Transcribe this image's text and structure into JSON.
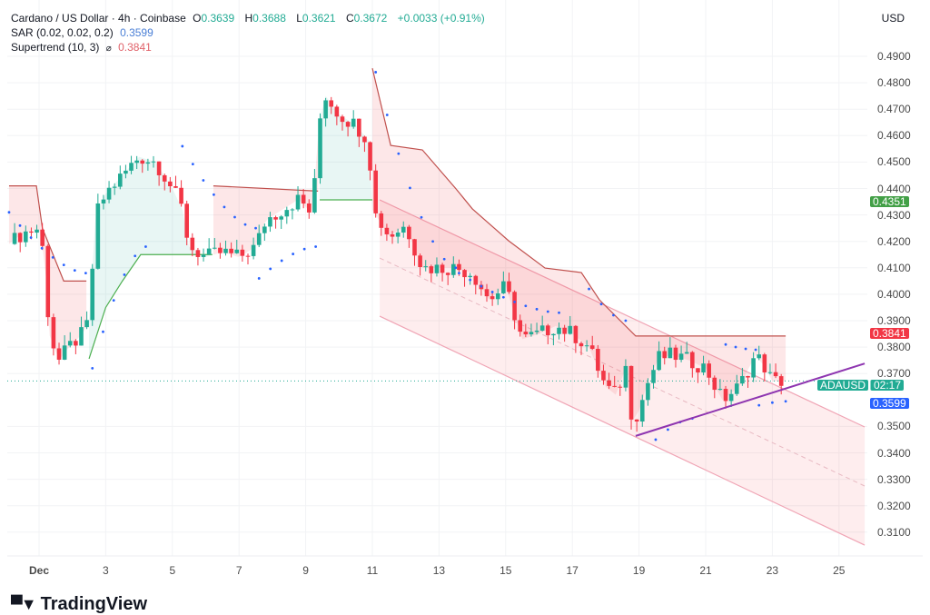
{
  "header": {
    "symbol": "Cardano / US Dollar · 4h · Coinbase",
    "o_label": "O",
    "o": "0.3639",
    "h_label": "H",
    "h": "0.3688",
    "l_label": "L",
    "l": "0.3621",
    "c_label": "C",
    "c": "0.3672",
    "change": "+0.0033 (+0.91%)",
    "sar_label": "SAR (0.02, 0.02, 0.2)",
    "sar_value": "0.3599",
    "st_label": "Supertrend (10, 3)",
    "st_symbol": "⌀",
    "st_value": "0.3841"
  },
  "currency": "USD",
  "price_tags": {
    "high_marker": "0.4351",
    "supertrend": "0.3841",
    "symbol": "ADAUSD",
    "countdown": "02:17",
    "sar": "0.3599"
  },
  "brand": "TradingView",
  "colors": {
    "up": "#22ab94",
    "down": "#f23645",
    "green_tag": "#43a047",
    "red_tag": "#f23645",
    "blue_tag": "#2962ff",
    "purple": "#8e35b0"
  },
  "chart_data": {
    "type": "candlestick",
    "title": "Cardano / US Dollar · 4h · Coinbase",
    "x_ticks": [
      {
        "d": 1,
        "label": "Dec"
      },
      {
        "d": 3,
        "label": "3"
      },
      {
        "d": 5,
        "label": "5"
      },
      {
        "d": 7,
        "label": "7"
      },
      {
        "d": 9,
        "label": "9"
      },
      {
        "d": 11,
        "label": "11"
      },
      {
        "d": 13,
        "label": "13"
      },
      {
        "d": 15,
        "label": "15"
      },
      {
        "d": 17,
        "label": "17"
      },
      {
        "d": 19,
        "label": "19"
      },
      {
        "d": 21,
        "label": "21"
      },
      {
        "d": 23,
        "label": "23"
      },
      {
        "d": 25,
        "label": "25"
      }
    ],
    "y_ticks": [
      "0.4900",
      "0.4800",
      "0.4700",
      "0.4600",
      "0.4500",
      "0.4400",
      "0.4300",
      "0.4200",
      "0.4100",
      "0.4000",
      "0.3900",
      "0.3800",
      "0.3700",
      "0.3500",
      "0.3400",
      "0.3300",
      "0.3200",
      "0.3100"
    ],
    "ylim": [
      0.3,
      0.5
    ],
    "price_path": [
      [
        0.1,
        0.419
      ],
      [
        0.5,
        0.423
      ],
      [
        1.0,
        0.425
      ],
      [
        1.2,
        0.41
      ],
      [
        1.3,
        0.385
      ],
      [
        1.6,
        0.375
      ],
      [
        1.9,
        0.38
      ],
      [
        2.3,
        0.385
      ],
      [
        2.5,
        0.39
      ],
      [
        2.7,
        0.43
      ],
      [
        3.0,
        0.438
      ],
      [
        3.5,
        0.445
      ],
      [
        4.0,
        0.452
      ],
      [
        4.5,
        0.45
      ],
      [
        5.0,
        0.44
      ],
      [
        5.3,
        0.432
      ],
      [
        5.5,
        0.418
      ],
      [
        6.0,
        0.414
      ],
      [
        6.5,
        0.416
      ],
      [
        7.0,
        0.414
      ],
      [
        7.5,
        0.418
      ],
      [
        7.8,
        0.428
      ],
      [
        8.3,
        0.432
      ],
      [
        8.8,
        0.436
      ],
      [
        9.2,
        0.43
      ],
      [
        9.4,
        0.465
      ],
      [
        9.6,
        0.475
      ],
      [
        10.0,
        0.468
      ],
      [
        10.5,
        0.464
      ],
      [
        10.9,
        0.458
      ],
      [
        11.0,
        0.432
      ],
      [
        11.5,
        0.422
      ],
      [
        12.0,
        0.426
      ],
      [
        12.5,
        0.41
      ],
      [
        13.0,
        0.41
      ],
      [
        13.5,
        0.41
      ],
      [
        14.0,
        0.408
      ],
      [
        14.5,
        0.398
      ],
      [
        15.0,
        0.403
      ],
      [
        15.5,
        0.383
      ],
      [
        16.0,
        0.385
      ],
      [
        16.5,
        0.388
      ],
      [
        17.0,
        0.385
      ],
      [
        17.5,
        0.38
      ],
      [
        18.0,
        0.365
      ],
      [
        18.3,
        0.362
      ],
      [
        18.6,
        0.372
      ],
      [
        18.8,
        0.352
      ],
      [
        19.0,
        0.356
      ],
      [
        19.3,
        0.368
      ],
      [
        19.6,
        0.376
      ],
      [
        20.0,
        0.377
      ],
      [
        20.5,
        0.375
      ],
      [
        21.0,
        0.372
      ],
      [
        21.5,
        0.36
      ],
      [
        22.0,
        0.365
      ],
      [
        22.5,
        0.377
      ],
      [
        22.8,
        0.372
      ],
      [
        23.0,
        0.367
      ],
      [
        23.35,
        0.3672
      ]
    ],
    "supertrend": [
      {
        "dir": "down",
        "points": [
          [
            0.1,
            0.441
          ],
          [
            0.92,
            0.441
          ],
          [
            1.1,
            0.425
          ],
          [
            1.74,
            0.405
          ],
          [
            2.42,
            0.405
          ]
        ]
      },
      {
        "dir": "up",
        "points": [
          [
            2.5,
            0.3756
          ],
          [
            3.0,
            0.395
          ],
          [
            3.5,
            0.405
          ],
          [
            4.05,
            0.415
          ],
          [
            6.2,
            0.415
          ]
        ]
      },
      {
        "dir": "down",
        "points": [
          [
            6.23,
            0.441
          ],
          [
            9.37,
            0.439
          ]
        ]
      },
      {
        "dir": "up",
        "points": [
          [
            9.42,
            0.4357
          ],
          [
            11.0,
            0.4357
          ]
        ]
      },
      {
        "dir": "down",
        "points": [
          [
            11.0,
            0.4855
          ],
          [
            11.55,
            0.4563
          ],
          [
            12.5,
            0.4546
          ],
          [
            13.5,
            0.44
          ],
          [
            14.0,
            0.4323
          ],
          [
            15.09,
            0.4202
          ],
          [
            16.18,
            0.4099
          ],
          [
            17.27,
            0.4082
          ],
          [
            17.81,
            0.3979
          ],
          [
            18.9,
            0.3842
          ],
          [
            23.4,
            0.3842
          ]
        ]
      }
    ],
    "sar_arcs": [
      [
        0.1,
        0.431,
        2.4,
        0.408
      ],
      [
        2.6,
        0.372,
        4.2,
        0.418
      ],
      [
        5.3,
        0.456,
        7.5,
        0.425
      ],
      [
        7.6,
        0.406,
        9.3,
        0.418
      ],
      [
        11.1,
        0.484,
        13.5,
        0.41
      ],
      [
        13.6,
        0.408,
        16.6,
        0.393
      ],
      [
        17.5,
        0.402,
        18.6,
        0.39
      ],
      [
        19.5,
        0.345,
        20.6,
        0.353
      ],
      [
        21.6,
        0.381,
        22.5,
        0.379
      ],
      [
        22.6,
        0.358,
        23.4,
        0.3595
      ]
    ],
    "channel": {
      "upper": [
        [
          11.22,
          0.4357
        ],
        [
          25.77,
          0.3498
        ]
      ],
      "lower": [
        [
          11.22,
          0.3917
        ],
        [
          25.77,
          0.3051
        ]
      ]
    },
    "trendline": [
      [
        18.9,
        0.3464
      ],
      [
        25.77,
        0.3738
      ]
    ],
    "last_price": 0.3672
  }
}
